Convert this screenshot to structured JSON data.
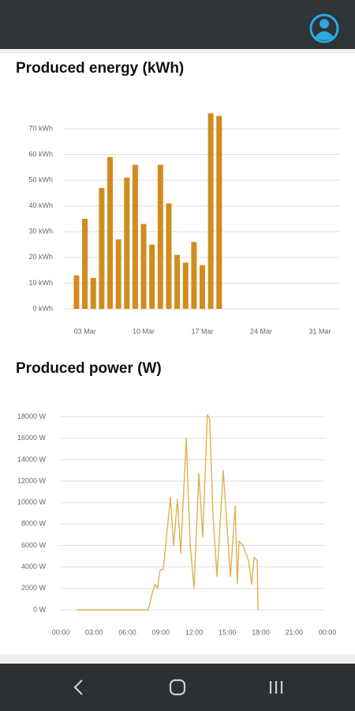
{
  "chart_data": [
    {
      "type": "bar",
      "title": "Produced energy (kWh)",
      "color": "#d08c1e",
      "grid": true,
      "x": [
        2,
        3,
        4,
        5,
        6,
        7,
        8,
        9,
        10,
        11,
        12,
        13,
        14,
        15,
        16,
        17,
        18,
        19
      ],
      "values": [
        13,
        35,
        12,
        47,
        59,
        27,
        51,
        56,
        33,
        25,
        56,
        41,
        21,
        18,
        26,
        17,
        76,
        75
      ],
      "xlim": [
        0.5,
        33.5
      ],
      "xticks": [
        {
          "value": 3,
          "label": "03 Mar"
        },
        {
          "value": 10,
          "label": "10 Mar"
        },
        {
          "value": 17,
          "label": "17 Mar"
        },
        {
          "value": 24,
          "label": "24 Mar"
        },
        {
          "value": 31,
          "label": "31 Mar"
        }
      ],
      "ylim": [
        0,
        80
      ],
      "yticks": [
        {
          "value": 0,
          "label": "0 kWh"
        },
        {
          "value": 10,
          "label": "10 kWh"
        },
        {
          "value": 20,
          "label": "20 kWh"
        },
        {
          "value": 30,
          "label": "30 kWh"
        },
        {
          "value": 40,
          "label": "40 kWh"
        },
        {
          "value": 50,
          "label": "50 kWh"
        },
        {
          "value": 60,
          "label": "60 kWh"
        },
        {
          "value": 70,
          "label": "70 kWh"
        }
      ]
    },
    {
      "type": "line",
      "title": "Produced power (W)",
      "color": "#e0b050",
      "grid": true,
      "x": [
        1.42,
        7.88,
        8.24,
        8.5,
        8.7,
        8.94,
        9.23,
        9.52,
        9.87,
        10.16,
        10.5,
        10.8,
        11.3,
        11.65,
        12.0,
        12.43,
        12.78,
        13.2,
        13.4,
        13.7,
        14.06,
        14.63,
        15.27,
        15.7,
        15.9,
        16.05,
        16.4,
        16.9,
        17.19,
        17.4,
        17.68,
        17.76
      ],
      "values": [
        0,
        0,
        1600,
        2400,
        2000,
        3700,
        3800,
        6800,
        10500,
        6000,
        10300,
        5300,
        16000,
        6000,
        2000,
        12700,
        6800,
        18200,
        17800,
        9000,
        3100,
        13000,
        3100,
        9700,
        2400,
        6400,
        6000,
        4600,
        2400,
        4900,
        4600,
        0
      ],
      "xlim": [
        0,
        24
      ],
      "xticks": [
        {
          "value": 0,
          "label": "00:00"
        },
        {
          "value": 3,
          "label": "03:00"
        },
        {
          "value": 6,
          "label": "06:00"
        },
        {
          "value": 9,
          "label": "09:00"
        },
        {
          "value": 12,
          "label": "12:00"
        },
        {
          "value": 15,
          "label": "15:00"
        },
        {
          "value": 18,
          "label": "18:00"
        },
        {
          "value": 21,
          "label": "21:00"
        },
        {
          "value": 24,
          "label": "00:00"
        }
      ],
      "ylim": [
        0,
        19000
      ],
      "yticks": [
        {
          "value": 0,
          "label": "0 W"
        },
        {
          "value": 2000,
          "label": "2000 W"
        },
        {
          "value": 4000,
          "label": "4000 W"
        },
        {
          "value": 6000,
          "label": "6000 W"
        },
        {
          "value": 8000,
          "label": "8000 W"
        },
        {
          "value": 10000,
          "label": "10000 W"
        },
        {
          "value": 12000,
          "label": "12000 W"
        },
        {
          "value": 14000,
          "label": "14000 W"
        },
        {
          "value": 16000,
          "label": "16000 W"
        },
        {
          "value": 18000,
          "label": "18000 W"
        }
      ]
    }
  ]
}
